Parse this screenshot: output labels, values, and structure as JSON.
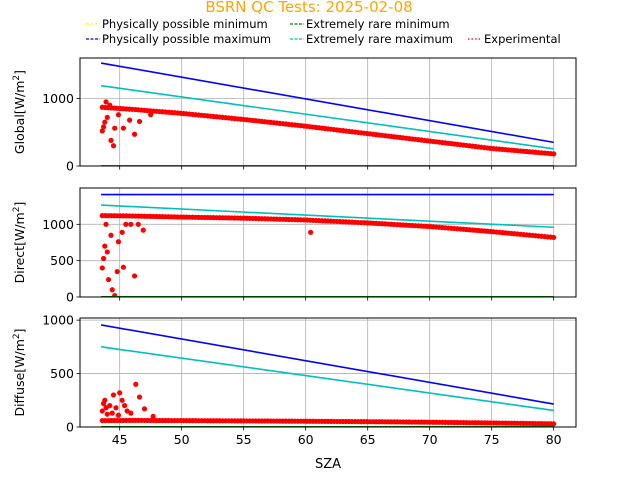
{
  "figure": {
    "title": "BSRN QC Tests: 2025-02-08",
    "title_color": "#ffa500",
    "xlabel": "SZA"
  },
  "legend": {
    "placement": "top",
    "items": [
      {
        "label": "Physically possible minimum",
        "color": "#ffff00",
        "style": "dashed"
      },
      {
        "label": "Extremely rare minimum",
        "color": "#008000",
        "style": "dashed"
      },
      {
        "label": "Physically possible maximum",
        "color": "#0000ff",
        "style": "dashed"
      },
      {
        "label": "Extremely rare maximum",
        "color": "#00bfbf",
        "style": "dashed"
      },
      {
        "label": "Experimental",
        "color": "#ff0000",
        "style": "dotted"
      }
    ]
  },
  "chart_data": [
    {
      "type": "scatter",
      "ylabel_main": "Global",
      "ylabel_unit": "[W/m",
      "ylabel_sup": "2",
      "ylabel_close": "]",
      "xlim": [
        41.8,
        81.8
      ],
      "ylim": [
        0,
        1600
      ],
      "xticks": [
        45,
        50,
        55,
        60,
        65,
        70,
        75,
        80
      ],
      "yticks": [
        0,
        1000
      ],
      "grid": true,
      "show_xtick_labels": false,
      "lines": [
        {
          "name": "Physically possible minimum",
          "x": [
            43.5,
            80
          ],
          "y": [
            0,
            0
          ],
          "color": "#ffff00"
        },
        {
          "name": "Extremely rare minimum",
          "x": [
            43.5,
            80
          ],
          "y": [
            2,
            2
          ],
          "color": "#008000"
        },
        {
          "name": "Physically possible maximum",
          "x": [
            43.5,
            80
          ],
          "y": [
            1525,
            350
          ],
          "color": "#0000ff"
        },
        {
          "name": "Extremely rare maximum",
          "x": [
            43.5,
            80
          ],
          "y": [
            1190,
            255
          ],
          "color": "#00bfbf"
        }
      ],
      "experimental": {
        "color": "#ff0000",
        "trend": {
          "x": [
            43.6,
            46,
            50,
            55,
            60,
            65,
            70,
            75,
            80
          ],
          "y": [
            870,
            840,
            780,
            690,
            590,
            480,
            370,
            260,
            180
          ]
        },
        "outliers": [
          {
            "x": 43.6,
            "y": 520
          },
          {
            "x": 43.7,
            "y": 580
          },
          {
            "x": 43.8,
            "y": 650
          },
          {
            "x": 43.9,
            "y": 950
          },
          {
            "x": 44.0,
            "y": 720
          },
          {
            "x": 44.2,
            "y": 900
          },
          {
            "x": 44.3,
            "y": 380
          },
          {
            "x": 44.5,
            "y": 300
          },
          {
            "x": 44.6,
            "y": 560
          },
          {
            "x": 44.9,
            "y": 760
          },
          {
            "x": 45.3,
            "y": 560
          },
          {
            "x": 45.8,
            "y": 680
          },
          {
            "x": 46.2,
            "y": 470
          },
          {
            "x": 46.6,
            "y": 660
          },
          {
            "x": 47.5,
            "y": 760
          }
        ]
      }
    },
    {
      "type": "scatter",
      "ylabel_main": "Direct",
      "ylabel_unit": "[W/m",
      "ylabel_sup": "2",
      "ylabel_close": "]",
      "xlim": [
        41.8,
        81.8
      ],
      "ylim": [
        0,
        1500
      ],
      "xticks": [
        45,
        50,
        55,
        60,
        65,
        70,
        75,
        80
      ],
      "yticks": [
        0,
        500,
        1000
      ],
      "grid": true,
      "show_xtick_labels": false,
      "lines": [
        {
          "name": "Physically possible minimum",
          "x": [
            43.5,
            80
          ],
          "y": [
            0,
            0
          ],
          "color": "#ffff00"
        },
        {
          "name": "Extremely rare minimum",
          "x": [
            43.5,
            80
          ],
          "y": [
            2,
            2
          ],
          "color": "#008000"
        },
        {
          "name": "Physically possible maximum",
          "x": [
            43.5,
            80
          ],
          "y": [
            1410,
            1410
          ],
          "color": "#0000ff"
        },
        {
          "name": "Extremely rare maximum",
          "x": [
            43.5,
            80
          ],
          "y": [
            1265,
            960
          ],
          "color": "#00bfbf"
        }
      ],
      "experimental": {
        "color": "#ff0000",
        "trend": {
          "x": [
            43.6,
            46,
            50,
            55,
            60,
            65,
            70,
            75,
            80
          ],
          "y": [
            1120,
            1115,
            1100,
            1085,
            1060,
            1020,
            970,
            900,
            820
          ]
        },
        "outliers": [
          {
            "x": 43.6,
            "y": 400
          },
          {
            "x": 43.7,
            "y": 530
          },
          {
            "x": 43.8,
            "y": 700
          },
          {
            "x": 43.9,
            "y": 1000
          },
          {
            "x": 44.0,
            "y": 620
          },
          {
            "x": 44.1,
            "y": 240
          },
          {
            "x": 44.3,
            "y": 850
          },
          {
            "x": 44.4,
            "y": 100
          },
          {
            "x": 44.6,
            "y": 20
          },
          {
            "x": 44.8,
            "y": 350
          },
          {
            "x": 44.9,
            "y": 760
          },
          {
            "x": 45.2,
            "y": 890
          },
          {
            "x": 45.3,
            "y": 410
          },
          {
            "x": 45.5,
            "y": 1000
          },
          {
            "x": 45.9,
            "y": 1000
          },
          {
            "x": 46.2,
            "y": 290
          },
          {
            "x": 46.5,
            "y": 1000
          },
          {
            "x": 46.9,
            "y": 920
          },
          {
            "x": 60.4,
            "y": 890
          }
        ]
      }
    },
    {
      "type": "scatter",
      "ylabel_main": "Diffuse",
      "ylabel_unit": "[W/m",
      "ylabel_sup": "2",
      "ylabel_close": "]",
      "xlim": [
        41.8,
        81.8
      ],
      "ylim": [
        0,
        1020
      ],
      "xticks": [
        45,
        50,
        55,
        60,
        65,
        70,
        75,
        80
      ],
      "yticks": [
        0,
        500,
        1000
      ],
      "grid": true,
      "show_xtick_labels": true,
      "lines": [
        {
          "name": "Physically possible minimum",
          "x": [
            43.5,
            80
          ],
          "y": [
            0,
            0
          ],
          "color": "#ffff00"
        },
        {
          "name": "Extremely rare minimum",
          "x": [
            43.5,
            80
          ],
          "y": [
            2,
            2
          ],
          "color": "#008000"
        },
        {
          "name": "Physically possible maximum",
          "x": [
            43.5,
            80
          ],
          "y": [
            955,
            215
          ],
          "color": "#0000ff"
        },
        {
          "name": "Extremely rare maximum",
          "x": [
            43.5,
            80
          ],
          "y": [
            750,
            155
          ],
          "color": "#00bfbf"
        }
      ],
      "experimental": {
        "color": "#ff0000",
        "trend": {
          "x": [
            43.6,
            46,
            50,
            55,
            60,
            65,
            70,
            75,
            80
          ],
          "y": [
            60,
            62,
            60,
            57,
            54,
            50,
            45,
            38,
            30
          ]
        },
        "outliers": [
          {
            "x": 43.6,
            "y": 150
          },
          {
            "x": 43.7,
            "y": 220
          },
          {
            "x": 43.8,
            "y": 250
          },
          {
            "x": 43.9,
            "y": 180
          },
          {
            "x": 44.0,
            "y": 120
          },
          {
            "x": 44.2,
            "y": 200
          },
          {
            "x": 44.4,
            "y": 130
          },
          {
            "x": 44.5,
            "y": 300
          },
          {
            "x": 44.7,
            "y": 180
          },
          {
            "x": 44.9,
            "y": 110
          },
          {
            "x": 45.0,
            "y": 320
          },
          {
            "x": 45.2,
            "y": 250
          },
          {
            "x": 45.4,
            "y": 200
          },
          {
            "x": 45.6,
            "y": 150
          },
          {
            "x": 45.9,
            "y": 130
          },
          {
            "x": 46.3,
            "y": 400
          },
          {
            "x": 46.6,
            "y": 280
          },
          {
            "x": 47.0,
            "y": 170
          },
          {
            "x": 47.7,
            "y": 100
          }
        ]
      }
    }
  ]
}
